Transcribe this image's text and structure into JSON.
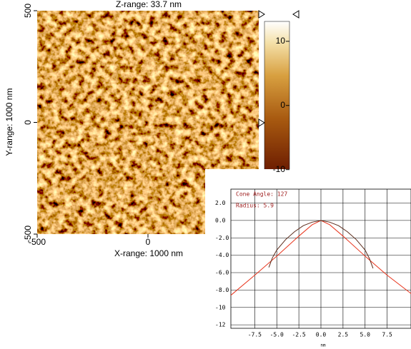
{
  "chart_data": [
    {
      "type": "image",
      "title": "Z-range: 33.7 nm",
      "x_label": "X-range: 1000 nm",
      "y_label": "Y-range: 1000 nm",
      "xlim": [
        -500,
        500
      ],
      "xticks": [
        -500,
        0
      ],
      "ylim": [
        -500,
        500
      ],
      "yticks": [
        -500,
        0,
        500
      ],
      "colorbar": {
        "zlim": [
          -20.6,
          13.1
        ],
        "zticks": [
          -10,
          0,
          10
        ]
      }
    },
    {
      "type": "line",
      "annotations": [
        "Cone Angle: 127",
        "Radius: 5.9"
      ],
      "x_label": "nm",
      "xlim": [
        -10.2,
        10.2
      ],
      "xticks": [
        -7.5,
        {
          "value": -5,
          "label": "-5.0"
        },
        -2.5,
        {
          "value": 0,
          "label": "0.0"
        },
        2.5,
        {
          "value": 5,
          "label": "5.0"
        },
        7.5
      ],
      "ylim": [
        -12.4,
        3.6
      ],
      "yticks": [
        {
          "value": 2,
          "label": "2.0"
        },
        {
          "value": 0,
          "label": "0.0"
        },
        {
          "value": -2,
          "label": "-2.0"
        },
        {
          "value": -4,
          "label": "-4.0"
        },
        {
          "value": -6,
          "label": "-6.0"
        },
        {
          "value": -8,
          "label": "-8.0"
        },
        -10,
        -12
      ],
      "grid": true,
      "series": [
        {
          "color": "#e8341c",
          "x": [
            -10.2,
            -7.5,
            -5,
            -2.5,
            -1,
            0,
            1,
            2.5,
            5,
            7.5,
            10.2
          ],
          "values": [
            -8.6,
            -6.3,
            -4.1,
            -1.8,
            -0.5,
            0,
            -0.5,
            -1.8,
            -4.1,
            -6.3,
            -8.4
          ]
        },
        {
          "color": "#5a2a1a",
          "x": [
            -5.9,
            -5.5,
            -5,
            -4,
            -3,
            -2,
            -1,
            0,
            1,
            2,
            3,
            4,
            5,
            5.5,
            5.9
          ],
          "values": [
            -5.4,
            -4.3,
            -3.4,
            -2.2,
            -1.3,
            -0.6,
            -0.2,
            0,
            -0.2,
            -0.6,
            -1.3,
            -2.2,
            -3.4,
            -4.4,
            -5.5
          ]
        }
      ]
    }
  ]
}
